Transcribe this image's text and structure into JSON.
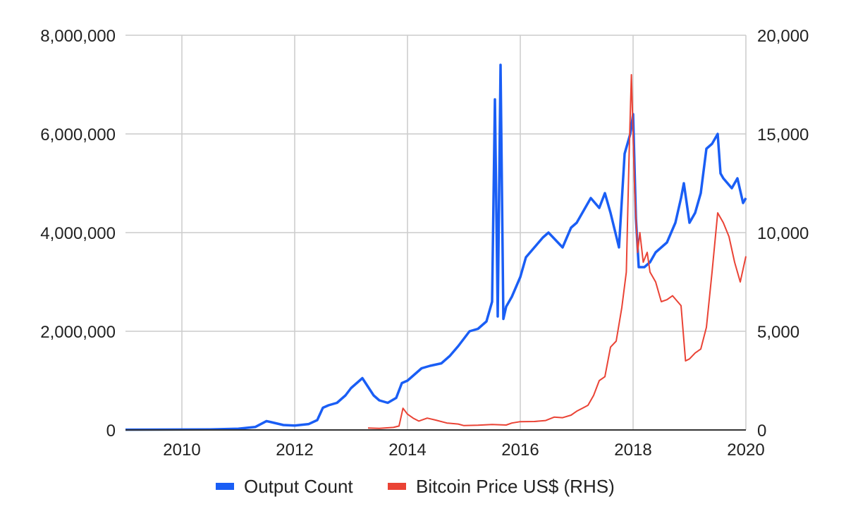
{
  "chart_data": {
    "type": "line",
    "title": "",
    "xlabel": "",
    "ylabel": "",
    "y2label": "",
    "grid": true,
    "legend_position": "bottom",
    "x_range": [
      2009.0,
      2020.0
    ],
    "x_ticks": [
      2010,
      2012,
      2014,
      2016,
      2018,
      2020
    ],
    "x_tick_labels": [
      "2010",
      "2012",
      "2014",
      "2016",
      "2018",
      "2020"
    ],
    "y_left_range": [
      0,
      8000000
    ],
    "y_left_ticks": [
      0,
      2000000,
      4000000,
      6000000,
      8000000
    ],
    "y_left_tick_labels": [
      "0",
      "2,000,000",
      "4,000,000",
      "6,000,000",
      "8,000,000"
    ],
    "y_right_range": [
      0,
      20000
    ],
    "y_right_ticks": [
      0,
      5000,
      10000,
      15000,
      20000
    ],
    "y_right_tick_labels": [
      "0",
      "5,000",
      "10,000",
      "15,000",
      "20,000"
    ],
    "series": [
      {
        "name": "Output Count",
        "axis": "left",
        "color": "#1a5ef5",
        "x": [
          2009.0,
          2010.0,
          2010.5,
          2011.0,
          2011.3,
          2011.5,
          2011.8,
          2012.0,
          2012.25,
          2012.4,
          2012.5,
          2012.6,
          2012.75,
          2012.9,
          2013.0,
          2013.2,
          2013.4,
          2013.5,
          2013.65,
          2013.8,
          2013.9,
          2014.0,
          2014.1,
          2014.25,
          2014.4,
          2014.6,
          2014.75,
          2014.9,
          2015.0,
          2015.1,
          2015.25,
          2015.4,
          2015.5,
          2015.55,
          2015.6,
          2015.65,
          2015.7,
          2015.75,
          2015.85,
          2016.0,
          2016.1,
          2016.25,
          2016.4,
          2016.5,
          2016.75,
          2016.9,
          2017.0,
          2017.1,
          2017.25,
          2017.4,
          2017.5,
          2017.6,
          2017.75,
          2017.85,
          2017.95,
          2018.0,
          2018.05,
          2018.1,
          2018.2,
          2018.3,
          2018.4,
          2018.5,
          2018.6,
          2018.75,
          2018.85,
          2018.9,
          2019.0,
          2019.1,
          2019.2,
          2019.3,
          2019.4,
          2019.45,
          2019.5,
          2019.55,
          2019.6,
          2019.75,
          2019.85,
          2019.95,
          2020.0
        ],
        "values": [
          5000,
          8000,
          12000,
          25000,
          60000,
          180000,
          100000,
          90000,
          120000,
          200000,
          450000,
          500000,
          550000,
          700000,
          850000,
          1050000,
          700000,
          600000,
          550000,
          650000,
          950000,
          1000000,
          1100000,
          1250000,
          1300000,
          1350000,
          1500000,
          1700000,
          1850000,
          2000000,
          2050000,
          2200000,
          2600000,
          6700000,
          2300000,
          7400000,
          2250000,
          2500000,
          2700000,
          3100000,
          3500000,
          3700000,
          3900000,
          4000000,
          3700000,
          4100000,
          4200000,
          4400000,
          4700000,
          4500000,
          4800000,
          4400000,
          3700000,
          5600000,
          6000000,
          6400000,
          4300000,
          3300000,
          3300000,
          3400000,
          3600000,
          3700000,
          3800000,
          4200000,
          4700000,
          5000000,
          4200000,
          4400000,
          4800000,
          5700000,
          5800000,
          5900000,
          6000000,
          5200000,
          5100000,
          4900000,
          5100000,
          4600000,
          4700000
        ]
      },
      {
        "name": "Bitcoin Price US$ (RHS)",
        "axis": "right",
        "color": "#ea4335",
        "x": [
          2013.3,
          2013.5,
          2013.75,
          2013.85,
          2013.92,
          2014.0,
          2014.1,
          2014.2,
          2014.35,
          2014.5,
          2014.7,
          2014.9,
          2015.0,
          2015.25,
          2015.5,
          2015.75,
          2015.85,
          2016.0,
          2016.25,
          2016.45,
          2016.6,
          2016.75,
          2016.9,
          2017.0,
          2017.1,
          2017.2,
          2017.3,
          2017.4,
          2017.5,
          2017.6,
          2017.7,
          2017.8,
          2017.88,
          2017.93,
          2017.97,
          2018.0,
          2018.03,
          2018.08,
          2018.12,
          2018.18,
          2018.25,
          2018.3,
          2018.4,
          2018.5,
          2018.6,
          2018.7,
          2018.85,
          2018.93,
          2019.0,
          2019.1,
          2019.2,
          2019.3,
          2019.4,
          2019.45,
          2019.5,
          2019.6,
          2019.7,
          2019.8,
          2019.9,
          2020.0
        ],
        "values": [
          100,
          80,
          130,
          200,
          1100,
          800,
          600,
          450,
          600,
          500,
          350,
          300,
          220,
          240,
          280,
          250,
          350,
          420,
          430,
          480,
          650,
          620,
          750,
          950,
          1100,
          1250,
          1750,
          2500,
          2700,
          4200,
          4500,
          6200,
          8000,
          14000,
          18000,
          15000,
          12000,
          9000,
          10000,
          8500,
          9000,
          8000,
          7500,
          6500,
          6600,
          6800,
          6300,
          3500,
          3600,
          3900,
          4100,
          5200,
          8000,
          9500,
          11000,
          10500,
          9800,
          8500,
          7500,
          8800
        ]
      }
    ]
  }
}
